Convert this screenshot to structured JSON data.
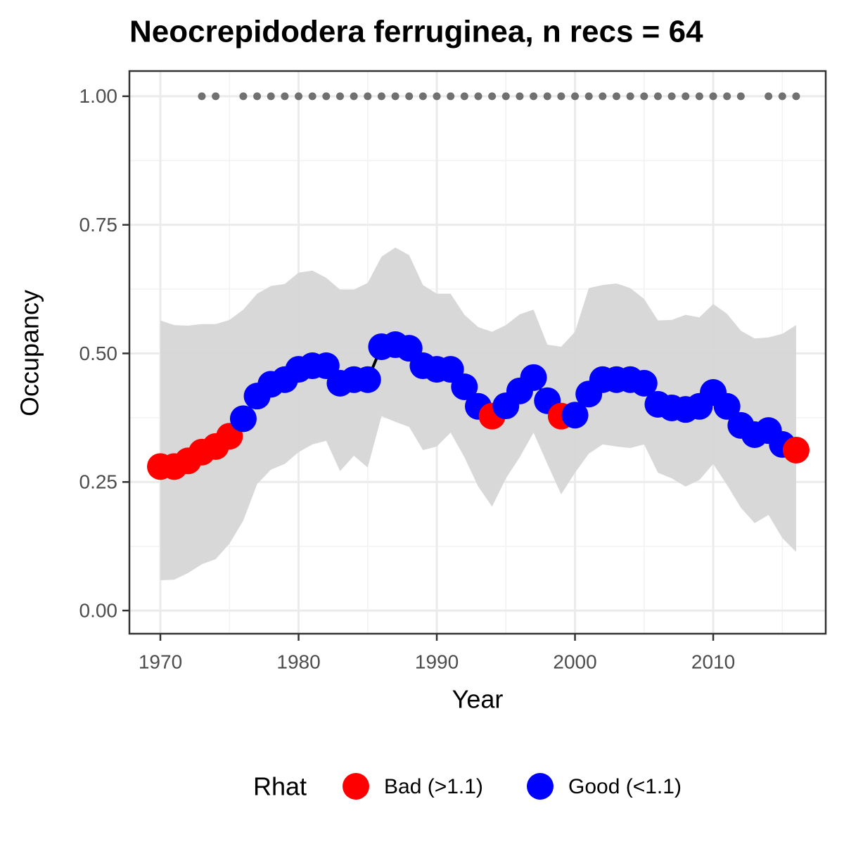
{
  "chart_data": {
    "type": "line",
    "title": "Neocrepidodera ferruginea, n recs = 64",
    "x_label": "Year",
    "y_label": "Occupancy",
    "xlim": [
      1967.76,
      2018.14
    ],
    "ylim": [
      -0.045,
      1.049
    ],
    "xticks": [
      1970,
      1980,
      1990,
      2000,
      2010
    ],
    "yticks": [
      {
        "value": 0,
        "label": "0.00"
      },
      {
        "value": 0.25,
        "label": "0.25"
      },
      {
        "value": 0.5,
        "label": "0.50"
      },
      {
        "value": 0.75,
        "label": "0.75"
      },
      {
        "value": 1,
        "label": "1.00"
      }
    ],
    "grid": true,
    "line_color": "#000000",
    "band_color": "#d6d6d6",
    "x": [
      1970,
      1971,
      1972,
      1973,
      1974,
      1975,
      1976,
      1977,
      1978,
      1979,
      1980,
      1981,
      1982,
      1983,
      1984,
      1985,
      1986,
      1987,
      1988,
      1989,
      1990,
      1991,
      1992,
      1993,
      1994,
      1995,
      1996,
      1997,
      1998,
      1999,
      2000,
      2001,
      2002,
      2003,
      2004,
      2005,
      2006,
      2007,
      2008,
      2009,
      2010,
      2011,
      2012,
      2013,
      2014,
      2015,
      2016
    ],
    "values": [
      0.28,
      0.28,
      0.291,
      0.308,
      0.319,
      0.339,
      0.373,
      0.417,
      0.44,
      0.449,
      0.469,
      0.476,
      0.476,
      0.442,
      0.449,
      0.449,
      0.513,
      0.517,
      0.51,
      0.476,
      0.469,
      0.469,
      0.435,
      0.397,
      0.378,
      0.398,
      0.427,
      0.453,
      0.408,
      0.378,
      0.38,
      0.421,
      0.449,
      0.449,
      0.449,
      0.442,
      0.401,
      0.394,
      0.391,
      0.397,
      0.424,
      0.397,
      0.36,
      0.342,
      0.35,
      0.323,
      0.312
    ],
    "lower": [
      0.059,
      0.06,
      0.073,
      0.09,
      0.1,
      0.13,
      0.175,
      0.246,
      0.274,
      0.285,
      0.308,
      0.323,
      0.33,
      0.271,
      0.301,
      0.278,
      0.378,
      0.367,
      0.357,
      0.312,
      0.319,
      0.346,
      0.298,
      0.241,
      0.202,
      0.257,
      0.298,
      0.346,
      0.285,
      0.226,
      0.268,
      0.305,
      0.323,
      0.319,
      0.316,
      0.323,
      0.268,
      0.257,
      0.241,
      0.254,
      0.285,
      0.244,
      0.2,
      0.17,
      0.186,
      0.141,
      0.114
    ],
    "upper": [
      0.564,
      0.555,
      0.554,
      0.557,
      0.557,
      0.565,
      0.585,
      0.616,
      0.631,
      0.635,
      0.657,
      0.661,
      0.647,
      0.624,
      0.624,
      0.637,
      0.688,
      0.706,
      0.691,
      0.633,
      0.616,
      0.616,
      0.575,
      0.551,
      0.542,
      0.555,
      0.576,
      0.585,
      0.517,
      0.513,
      0.542,
      0.627,
      0.633,
      0.636,
      0.627,
      0.606,
      0.564,
      0.565,
      0.575,
      0.57,
      0.596,
      0.577,
      0.544,
      0.529,
      0.531,
      0.538,
      0.555
    ],
    "rhat": [
      "Bad (>1.1)",
      "Bad (>1.1)",
      "Bad (>1.1)",
      "Bad (>1.1)",
      "Bad (>1.1)",
      "Bad (>1.1)",
      "Good (<1.1)",
      "Good (<1.1)",
      "Good (<1.1)",
      "Good (<1.1)",
      "Good (<1.1)",
      "Good (<1.1)",
      "Good (<1.1)",
      "Good (<1.1)",
      "Good (<1.1)",
      "Good (<1.1)",
      "Good (<1.1)",
      "Good (<1.1)",
      "Good (<1.1)",
      "Good (<1.1)",
      "Good (<1.1)",
      "Good (<1.1)",
      "Good (<1.1)",
      "Good (<1.1)",
      "Bad (>1.1)",
      "Good (<1.1)",
      "Good (<1.1)",
      "Good (<1.1)",
      "Good (<1.1)",
      "Bad (>1.1)",
      "Good (<1.1)",
      "Good (<1.1)",
      "Good (<1.1)",
      "Good (<1.1)",
      "Good (<1.1)",
      "Good (<1.1)",
      "Good (<1.1)",
      "Good (<1.1)",
      "Good (<1.1)",
      "Good (<1.1)",
      "Good (<1.1)",
      "Good (<1.1)",
      "Good (<1.1)",
      "Good (<1.1)",
      "Good (<1.1)",
      "Good (<1.1)",
      "Bad (>1.1)"
    ],
    "records": {
      "color": "#707070",
      "x": [
        1973,
        1974,
        1976,
        1977,
        1978,
        1979,
        1980,
        1981,
        1982,
        1983,
        1984,
        1985,
        1986,
        1987,
        1988,
        1989,
        1990,
        1991,
        1992,
        1993,
        1994,
        1995,
        1996,
        1997,
        1998,
        1999,
        2000,
        2001,
        2002,
        2003,
        2004,
        2005,
        2006,
        2007,
        2008,
        2009,
        2010,
        2011,
        2012,
        2014,
        2015,
        2016
      ],
      "values": [
        1,
        1,
        1,
        1,
        1,
        1,
        1,
        1,
        1,
        1,
        1,
        1,
        1,
        1,
        1,
        1,
        1,
        1,
        1,
        1,
        1,
        1,
        1,
        1,
        1,
        1,
        1,
        1,
        1,
        1,
        1,
        1,
        1,
        1,
        1,
        1,
        1,
        1,
        1,
        1,
        1,
        1
      ]
    },
    "legend": {
      "title": "Rhat",
      "position": "bottom",
      "entries": [
        {
          "name": "Bad (>1.1)",
          "color": "#ff0000"
        },
        {
          "name": "Good (<1.1)",
          "color": "#0000ff"
        }
      ]
    }
  }
}
